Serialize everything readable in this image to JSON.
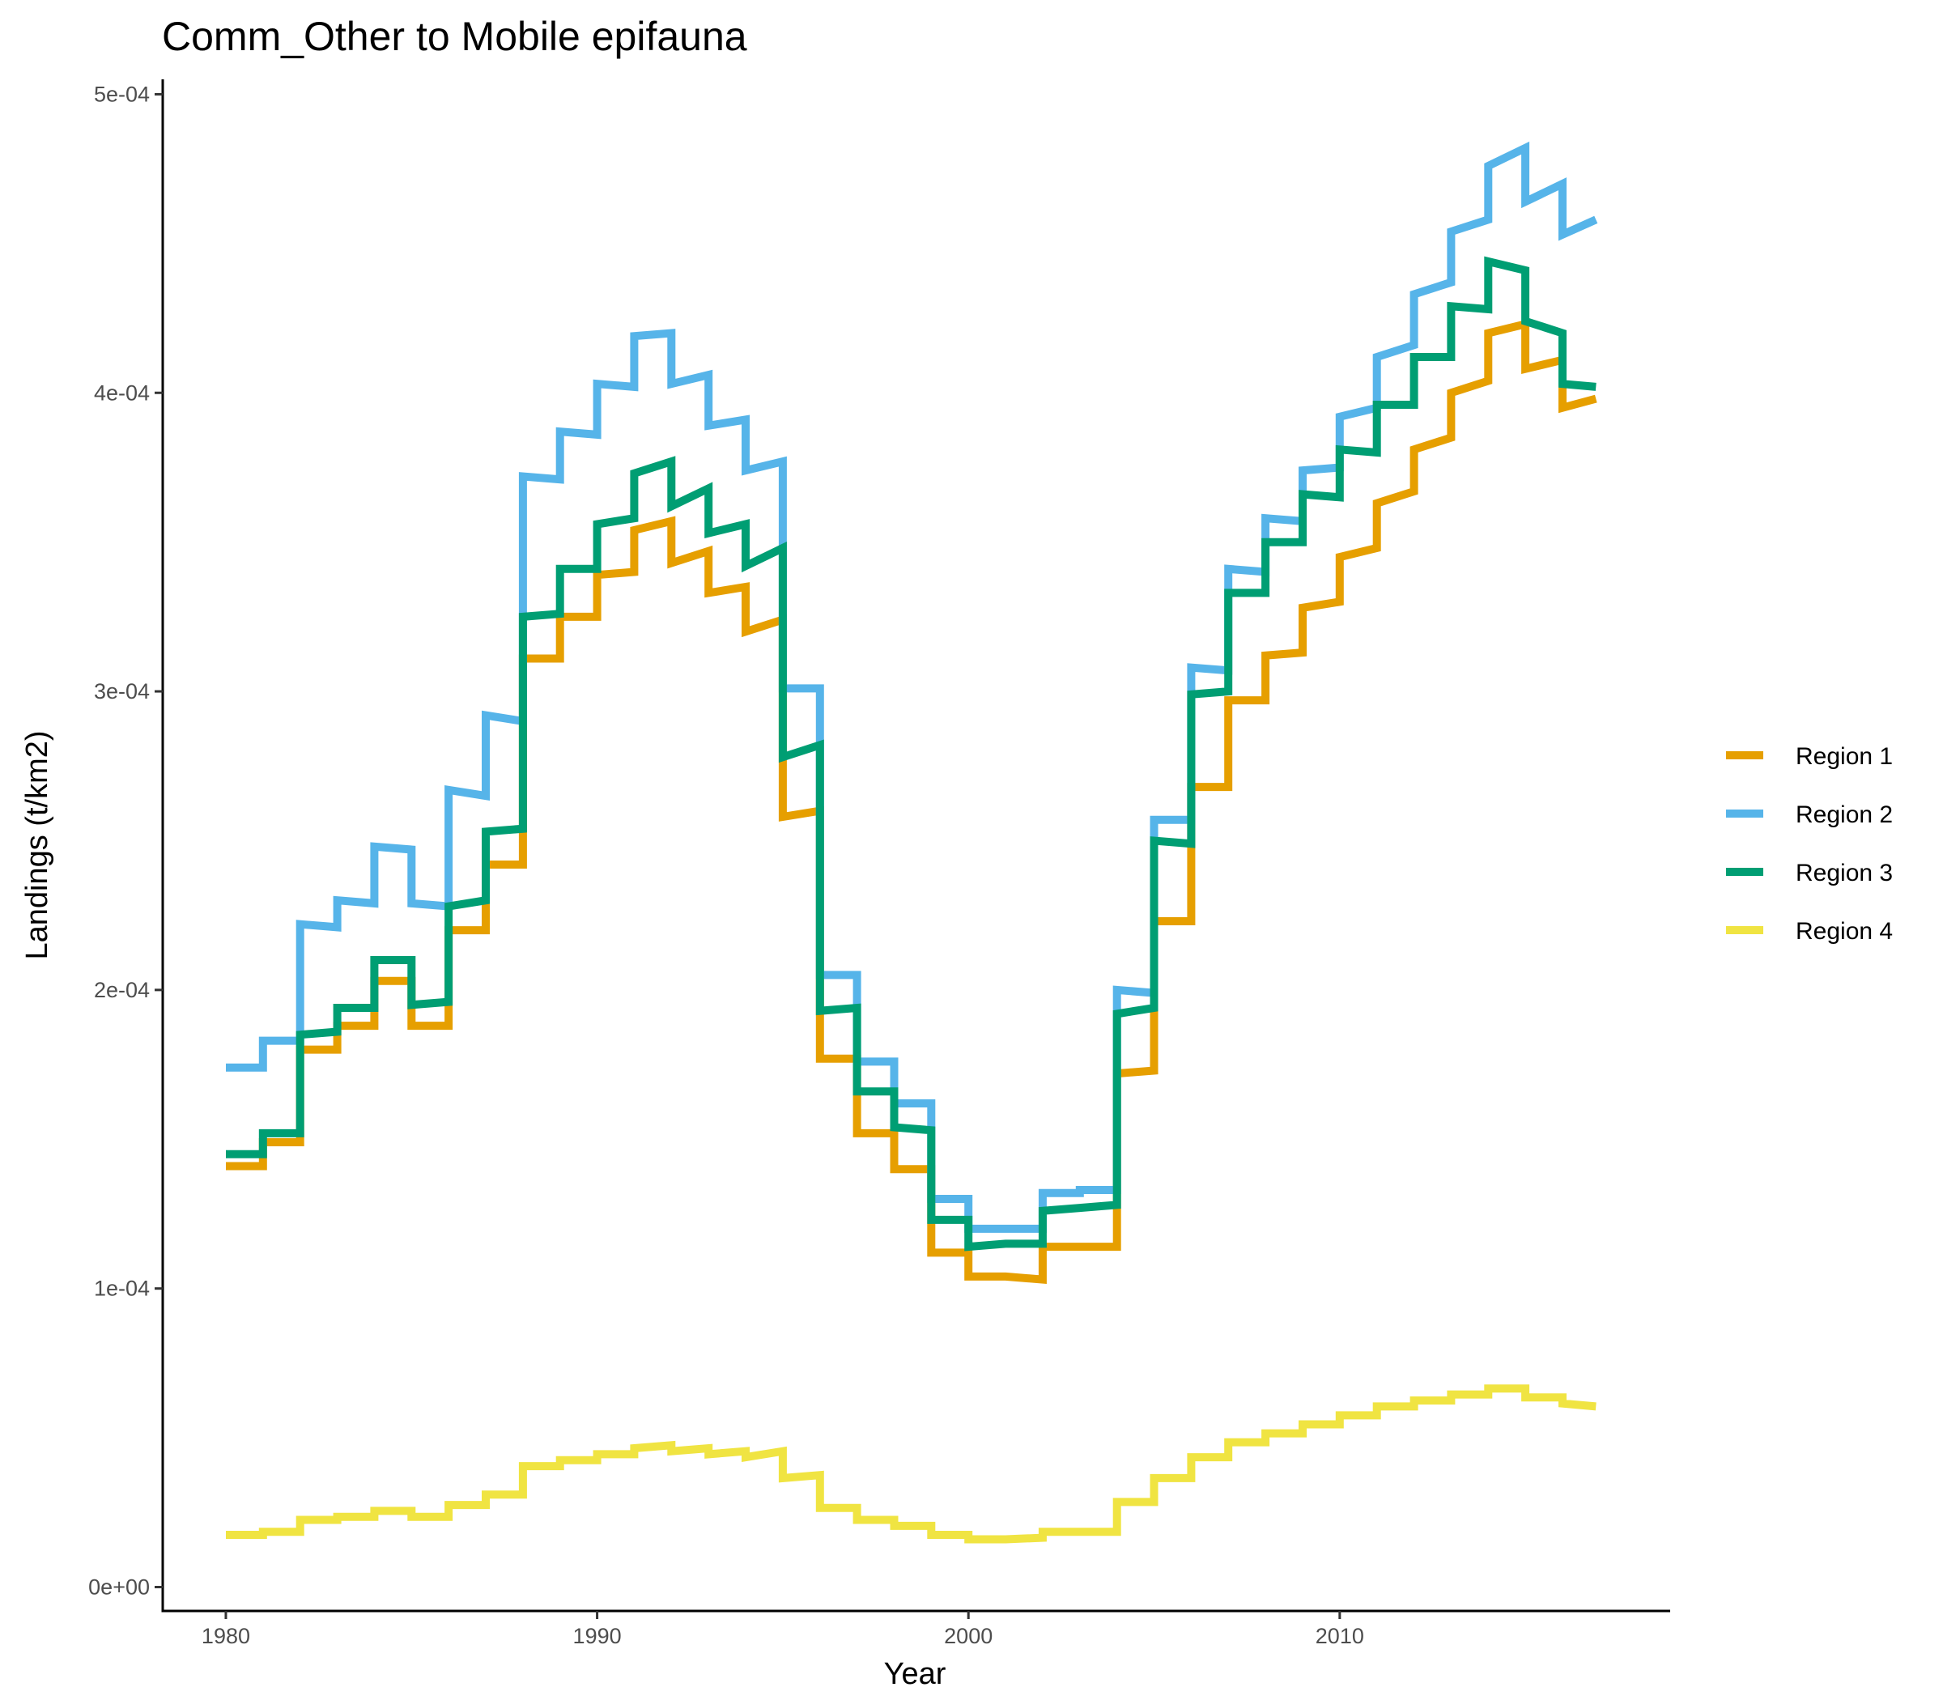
{
  "chart_data": {
    "type": "line",
    "title": "Comm_Other to Mobile epifauna",
    "xlabel": "Year",
    "ylabel": "Landings (t/km2)",
    "xlim": [
      1978.3,
      2018.9
    ],
    "ylim": [
      -8e-06,
      0.000505
    ],
    "x_ticks": [
      1980,
      1990,
      2000,
      2010
    ],
    "x_tick_labels": [
      "1980",
      "1990",
      "2000",
      "2010"
    ],
    "y_ticks": [
      0,
      0.0001,
      0.0002,
      0.0003,
      0.0004,
      0.0005
    ],
    "y_tick_labels": [
      "0e+00",
      "1e-04",
      "2e-04",
      "3e-04",
      "4e-04",
      "5e-04"
    ],
    "grid": false,
    "legend_position": "right",
    "legend": [
      "Region 1",
      "Region 2",
      "Region 3",
      "Region 4"
    ],
    "series": [
      {
        "name": "Region 1",
        "color": "#E69F00",
        "x": [
          1980,
          1981,
          1981,
          1982,
          1982,
          1983,
          1983,
          1984,
          1984,
          1985,
          1985,
          1986,
          1986,
          1987,
          1987,
          1988,
          1988,
          1989,
          1989,
          1990,
          1990,
          1991,
          1991,
          1992,
          1992,
          1993,
          1993,
          1994,
          1994,
          1995,
          1995,
          1996,
          1996,
          1997,
          1997,
          1998,
          1998,
          1999,
          1999,
          2000,
          2000,
          2001,
          2001,
          2002,
          2002,
          2003,
          2003,
          2004,
          2004,
          2005,
          2005,
          2006,
          2006,
          2007,
          2007,
          2008,
          2008,
          2009,
          2009,
          2010,
          2010,
          2011,
          2011,
          2012,
          2012,
          2013,
          2013,
          2014,
          2014,
          2015,
          2015,
          2016,
          2016,
          2016.9
        ],
        "y": [
          0.000141,
          0.000141,
          0.000149,
          0.000149,
          0.00018,
          0.00018,
          0.000188,
          0.000188,
          0.000203,
          0.000203,
          0.000188,
          0.000188,
          0.00022,
          0.00022,
          0.000242,
          0.000242,
          0.000311,
          0.000311,
          0.000325,
          0.000325,
          0.000339,
          0.00034,
          0.000354,
          0.000357,
          0.000343,
          0.000347,
          0.000333,
          0.000335,
          0.00032,
          0.000324,
          0.000258,
          0.00026,
          0.000177,
          0.000177,
          0.000152,
          0.000152,
          0.00014,
          0.00014,
          0.000112,
          0.000112,
          0.000104,
          0.000104,
          0.000104,
          0.000103,
          0.000114,
          0.000114,
          0.000114,
          0.000114,
          0.000172,
          0.000173,
          0.000223,
          0.000223,
          0.000268,
          0.000268,
          0.000297,
          0.000297,
          0.000312,
          0.000313,
          0.000328,
          0.00033,
          0.000345,
          0.000348,
          0.000363,
          0.000367,
          0.000381,
          0.000385,
          0.0004,
          0.000404,
          0.00042,
          0.000423,
          0.000408,
          0.000411,
          0.000395,
          0.000398
        ]
      },
      {
        "name": "Region 2",
        "color": "#56B4E9",
        "x": [
          1980,
          1981,
          1981,
          1982,
          1982,
          1983,
          1983,
          1984,
          1984,
          1985,
          1985,
          1986,
          1986,
          1987,
          1987,
          1988,
          1988,
          1989,
          1989,
          1990,
          1990,
          1991,
          1991,
          1992,
          1992,
          1993,
          1993,
          1994,
          1994,
          1995,
          1995,
          1996,
          1996,
          1997,
          1997,
          1998,
          1998,
          1999,
          1999,
          2000,
          2000,
          2001,
          2001,
          2002,
          2002,
          2003,
          2003,
          2004,
          2004,
          2005,
          2005,
          2006,
          2006,
          2007,
          2007,
          2008,
          2008,
          2009,
          2009,
          2010,
          2010,
          2011,
          2011,
          2012,
          2012,
          2013,
          2013,
          2014,
          2014,
          2015,
          2015,
          2016,
          2016,
          2016.9
        ],
        "y": [
          0.000174,
          0.000174,
          0.000183,
          0.000183,
          0.000222,
          0.000221,
          0.00023,
          0.000229,
          0.000248,
          0.000247,
          0.000229,
          0.000228,
          0.000267,
          0.000265,
          0.000292,
          0.00029,
          0.000372,
          0.000371,
          0.000387,
          0.000386,
          0.000403,
          0.000402,
          0.000419,
          0.00042,
          0.000403,
          0.000406,
          0.000389,
          0.000391,
          0.000374,
          0.000377,
          0.000301,
          0.000301,
          0.000205,
          0.000205,
          0.000176,
          0.000176,
          0.000162,
          0.000162,
          0.00013,
          0.00013,
          0.00012,
          0.00012,
          0.00012,
          0.00012,
          0.000132,
          0.000132,
          0.000133,
          0.000133,
          0.0002,
          0.000199,
          0.000257,
          0.000257,
          0.000308,
          0.000307,
          0.000341,
          0.00034,
          0.000358,
          0.000357,
          0.000374,
          0.000375,
          0.000392,
          0.000395,
          0.000412,
          0.000416,
          0.000433,
          0.000437,
          0.000454,
          0.000458,
          0.000476,
          0.000482,
          0.000464,
          0.00047,
          0.000453,
          0.000458
        ]
      },
      {
        "name": "Region 3",
        "color": "#009E73",
        "x": [
          1980,
          1981,
          1981,
          1982,
          1982,
          1983,
          1983,
          1984,
          1984,
          1985,
          1985,
          1986,
          1986,
          1987,
          1987,
          1988,
          1988,
          1989,
          1989,
          1990,
          1990,
          1991,
          1991,
          1992,
          1992,
          1993,
          1993,
          1994,
          1994,
          1995,
          1995,
          1996,
          1996,
          1997,
          1997,
          1998,
          1998,
          1999,
          1999,
          2000,
          2000,
          2001,
          2001,
          2002,
          2002,
          2003,
          2003,
          2004,
          2004,
          2005,
          2005,
          2006,
          2006,
          2007,
          2007,
          2008,
          2008,
          2009,
          2009,
          2010,
          2010,
          2011,
          2011,
          2012,
          2012,
          2013,
          2013,
          2014,
          2014,
          2015,
          2015,
          2016,
          2016,
          2016.9
        ],
        "y": [
          0.000145,
          0.000145,
          0.000152,
          0.000152,
          0.000185,
          0.000186,
          0.000194,
          0.000194,
          0.00021,
          0.00021,
          0.000195,
          0.000196,
          0.000228,
          0.00023,
          0.000253,
          0.000254,
          0.000325,
          0.000326,
          0.000341,
          0.000341,
          0.000356,
          0.000358,
          0.000373,
          0.000377,
          0.000362,
          0.000368,
          0.000353,
          0.000356,
          0.000342,
          0.000348,
          0.000278,
          0.000282,
          0.000193,
          0.000194,
          0.000166,
          0.000166,
          0.000154,
          0.000153,
          0.000123,
          0.000123,
          0.000114,
          0.000115,
          0.000115,
          0.000115,
          0.000126,
          0.000127,
          0.000127,
          0.000128,
          0.000192,
          0.000194,
          0.00025,
          0.000249,
          0.000299,
          0.0003,
          0.000333,
          0.000333,
          0.00035,
          0.00035,
          0.000366,
          0.000365,
          0.000381,
          0.00038,
          0.000396,
          0.000396,
          0.000412,
          0.000412,
          0.000429,
          0.000428,
          0.000444,
          0.000441,
          0.000424,
          0.00042,
          0.000403,
          0.000402
        ]
      },
      {
        "name": "Region 4",
        "color": "#F0E442",
        "x": [
          1980,
          1981,
          1981,
          1982,
          1982,
          1983,
          1983,
          1984,
          1984,
          1985,
          1985,
          1986,
          1986,
          1987,
          1987,
          1988,
          1988,
          1989,
          1989,
          1990,
          1990,
          1991,
          1991,
          1992,
          1992,
          1993,
          1993,
          1994,
          1994,
          1995,
          1995,
          1996,
          1996,
          1997,
          1997,
          1998,
          1998,
          1999,
          1999,
          2000,
          2000,
          2001,
          2001,
          2002,
          2002,
          2003,
          2003,
          2004,
          2004,
          2005,
          2005,
          2006,
          2006,
          2007,
          2007,
          2008,
          2008,
          2009,
          2009,
          2010,
          2010,
          2011,
          2011,
          2012,
          2012,
          2013,
          2013,
          2014,
          2014,
          2015,
          2015,
          2016,
          2016,
          2016.9
        ],
        "y": [
          1.75e-05,
          1.75e-05,
          1.85e-05,
          1.85e-05,
          2.25e-05,
          2.25e-05,
          2.35e-05,
          2.35e-05,
          2.55e-05,
          2.55e-05,
          2.35e-05,
          2.35e-05,
          2.75e-05,
          2.75e-05,
          3.1e-05,
          3.1e-05,
          4.05e-05,
          4.05e-05,
          4.25e-05,
          4.25e-05,
          4.45e-05,
          4.45e-05,
          4.65e-05,
          4.75e-05,
          4.55e-05,
          4.65e-05,
          4.45e-05,
          4.55e-05,
          4.35e-05,
          4.55e-05,
          3.65e-05,
          3.75e-05,
          2.65e-05,
          2.65e-05,
          2.25e-05,
          2.25e-05,
          2.05e-05,
          2.05e-05,
          1.75e-05,
          1.75e-05,
          1.6e-05,
          1.6e-05,
          1.6e-05,
          1.65e-05,
          1.85e-05,
          1.85e-05,
          1.85e-05,
          1.85e-05,
          2.85e-05,
          2.85e-05,
          3.65e-05,
          3.65e-05,
          4.35e-05,
          4.35e-05,
          4.85e-05,
          4.85e-05,
          5.15e-05,
          5.15e-05,
          5.45e-05,
          5.45e-05,
          5.75e-05,
          5.75e-05,
          6.05e-05,
          6.05e-05,
          6.25e-05,
          6.25e-05,
          6.45e-05,
          6.45e-05,
          6.65e-05,
          6.65e-05,
          6.35e-05,
          6.35e-05,
          6.15e-05,
          6.05e-05
        ]
      }
    ]
  }
}
